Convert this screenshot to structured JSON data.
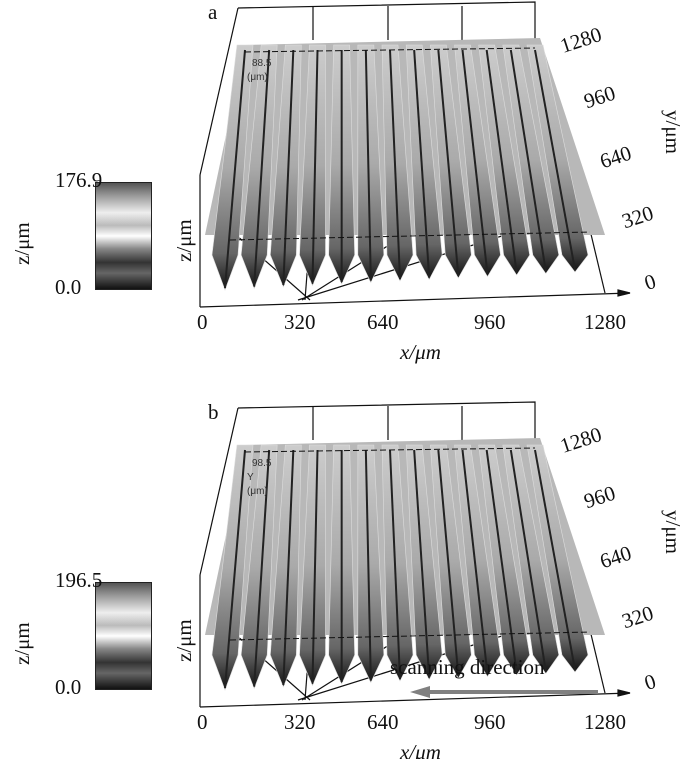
{
  "chart_data": [
    {
      "type": "surface3d",
      "panel_label": "a",
      "colorbar": {
        "max_label": "176.9",
        "min_label": "0.0",
        "label": "z/μm"
      },
      "xlabel": "x/μm",
      "ylabel": "y/μm",
      "zlabel": "z/μm",
      "x_ticks": [
        "0",
        "320",
        "640",
        "960",
        "1280"
      ],
      "y_ticks": [
        "0",
        "320",
        "640",
        "960",
        "1280"
      ],
      "inset_text": [
        "88.5",
        "(μm)"
      ],
      "ridge_count": 13
    },
    {
      "type": "surface3d",
      "panel_label": "b",
      "colorbar": {
        "max_label": "196.5",
        "min_label": "0.0",
        "label": "z/μm"
      },
      "xlabel": "x/μm",
      "ylabel": "y/μm",
      "zlabel": "z/μm",
      "x_ticks": [
        "0",
        "320",
        "640",
        "960",
        "1280"
      ],
      "y_ticks": [
        "0",
        "320",
        "640",
        "960",
        "1280"
      ],
      "inset_text": [
        "98.5",
        "Y",
        "(μm)"
      ],
      "ridge_count": 13,
      "annotation": "scanning direction",
      "annotation_color": "#808080"
    }
  ]
}
